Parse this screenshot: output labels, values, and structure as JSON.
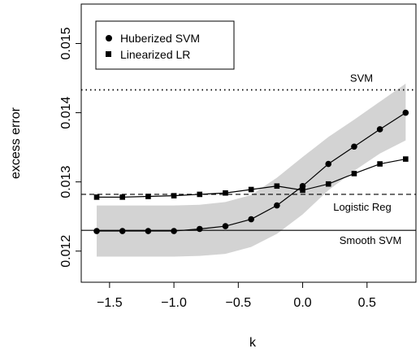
{
  "chart_data": {
    "type": "line",
    "title": "",
    "xlabel": "k",
    "ylabel": "excess error",
    "xlim": [
      -1.72,
      0.88
    ],
    "ylim": [
      0.01155,
      0.01557
    ],
    "grid": false,
    "legend_position": "top-left",
    "x_ticks": [
      -1.5,
      -1.0,
      -0.5,
      0.0,
      0.5
    ],
    "x_tick_labels": [
      "−1.5",
      "−1.0",
      "−0.5",
      "0.0",
      "0.5"
    ],
    "y_ticks": [
      0.012,
      0.013,
      0.014,
      0.015
    ],
    "y_tick_labels": [
      "0.012",
      "0.013",
      "0.014",
      "0.015"
    ],
    "x": [
      -1.6,
      -1.4,
      -1.2,
      -1.0,
      -0.8,
      -0.6,
      -0.4,
      -0.2,
      0.0,
      0.2,
      0.4,
      0.6,
      0.8
    ],
    "series": [
      {
        "name": "Huberized SVM",
        "marker": "circle",
        "values": [
          0.01229,
          0.01229,
          0.01229,
          0.01229,
          0.01232,
          0.01236,
          0.01246,
          0.01266,
          0.01294,
          0.01326,
          0.01351,
          0.01376,
          0.014
        ]
      },
      {
        "name": "Linearized LR",
        "marker": "square",
        "values": [
          0.01278,
          0.01278,
          0.01279,
          0.0128,
          0.01282,
          0.01284,
          0.01289,
          0.01294,
          0.01288,
          0.01297,
          0.01312,
          0.01326,
          0.01333
        ]
      }
    ],
    "band": {
      "x": [
        -1.6,
        -1.4,
        -1.2,
        -1.0,
        -0.8,
        -0.6,
        -0.4,
        -0.2,
        0.0,
        0.2,
        0.4,
        0.6,
        0.8
      ],
      "lower": [
        0.01192,
        0.01192,
        0.01192,
        0.01192,
        0.01193,
        0.01196,
        0.01206,
        0.01225,
        0.01253,
        0.01288,
        0.01316,
        0.01341,
        0.0136
      ],
      "upper": [
        0.01266,
        0.01266,
        0.01266,
        0.01266,
        0.01267,
        0.01271,
        0.01281,
        0.01306,
        0.01336,
        0.01365,
        0.0139,
        0.01416,
        0.01442
      ],
      "color": "#d3d3d3"
    },
    "reference_lines": [
      {
        "label": "SVM",
        "y": 0.01433,
        "style": "dotted"
      },
      {
        "label": "Logistic Reg",
        "y": 0.01282,
        "style": "dashed"
      },
      {
        "label": "Smooth SVM",
        "y": 0.0123,
        "style": "solid"
      }
    ]
  }
}
